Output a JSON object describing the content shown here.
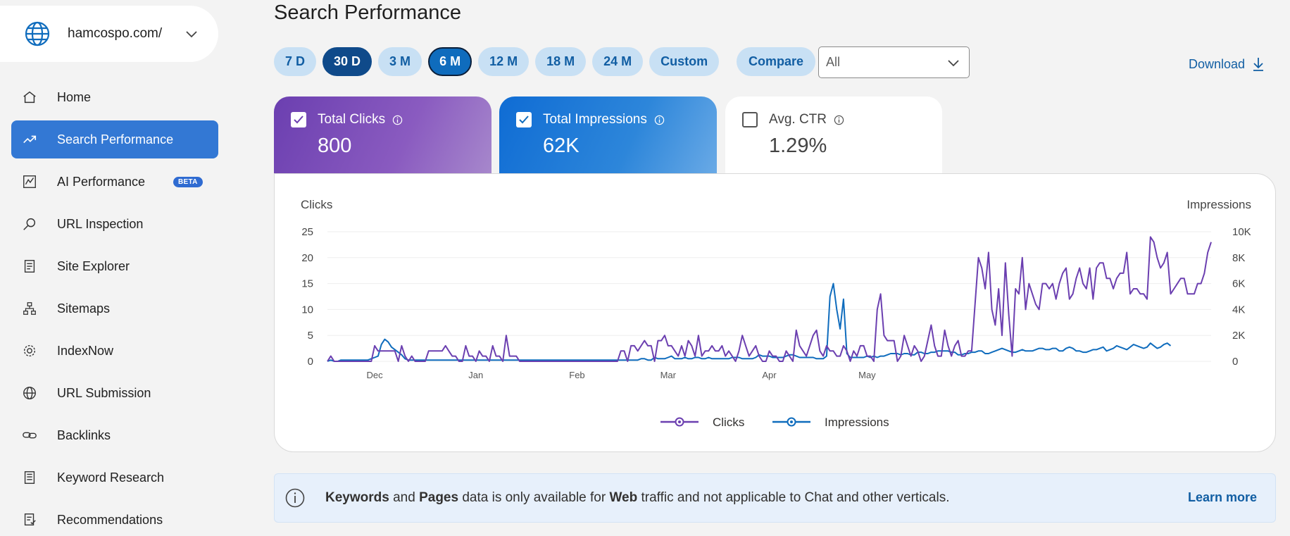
{
  "site": {
    "name": "hamcospo.com/"
  },
  "nav": [
    {
      "id": "home",
      "label": "Home",
      "icon": "home-icon"
    },
    {
      "id": "search-performance",
      "label": "Search Performance",
      "icon": "trend-icon",
      "active": true
    },
    {
      "id": "ai-performance",
      "label": "AI Performance",
      "icon": "chart-icon",
      "badge": "BETA"
    },
    {
      "id": "url-inspection",
      "label": "URL Inspection",
      "icon": "magnifier-icon"
    },
    {
      "id": "site-explorer",
      "label": "Site Explorer",
      "icon": "document-icon"
    },
    {
      "id": "sitemaps",
      "label": "Sitemaps",
      "icon": "sitemap-icon"
    },
    {
      "id": "indexnow",
      "label": "IndexNow",
      "icon": "gear-icon"
    },
    {
      "id": "url-submission",
      "label": "URL Submission",
      "icon": "globe-icon"
    },
    {
      "id": "backlinks",
      "label": "Backlinks",
      "icon": "link-icon"
    },
    {
      "id": "keyword-research",
      "label": "Keyword Research",
      "icon": "notes-icon"
    },
    {
      "id": "recommendations",
      "label": "Recommendations",
      "icon": "checklist-icon"
    }
  ],
  "header": {
    "title": "Search Performance"
  },
  "ranges": [
    {
      "label": "7 D",
      "state": "normal"
    },
    {
      "label": "30 D",
      "state": "dark"
    },
    {
      "label": "3 M",
      "state": "normal"
    },
    {
      "label": "6 M",
      "state": "selected"
    },
    {
      "label": "12 M",
      "state": "normal"
    },
    {
      "label": "18 M",
      "state": "normal"
    },
    {
      "label": "24 M",
      "state": "normal"
    },
    {
      "label": "Custom",
      "state": "normal"
    }
  ],
  "compare": {
    "label": "Compare"
  },
  "filter": {
    "value": "All"
  },
  "download": {
    "label": "Download"
  },
  "kpis": {
    "clicks": {
      "label": "Total Clicks",
      "value": "800",
      "checked": true
    },
    "impressions": {
      "label": "Total Impressions",
      "value": "62K",
      "checked": true
    },
    "ctr": {
      "label": "Avg. CTR",
      "value": "1.29%",
      "checked": false
    }
  },
  "banner": {
    "b1": "Keywords",
    "t1": " and ",
    "b2": "Pages",
    "t2": " data is only available for ",
    "b3": "Web",
    "t3": " traffic and not applicable to Chat and other verticals.",
    "link": "Learn more"
  },
  "colors": {
    "clicks": "#6b3fb0",
    "impressions": "#0f6cbd",
    "accent": "#115ea3"
  },
  "chart_data": {
    "type": "line",
    "left_axis_title": "Clicks",
    "right_axis_title": "Impressions",
    "left_ticks": [
      "0",
      "5",
      "10",
      "15",
      "20",
      "25"
    ],
    "right_ticks": [
      "0",
      "2K",
      "4K",
      "6K",
      "8K",
      "10K"
    ],
    "ylim_left": [
      0,
      25
    ],
    "ylim_right": [
      0,
      10000
    ],
    "x_labels": [
      "Dec",
      "Jan",
      "Feb",
      "Mar",
      "Apr",
      "May"
    ],
    "x_label_index": [
      14,
      44,
      74,
      101,
      131,
      160
    ],
    "legend": [
      "Clicks",
      "Impressions"
    ],
    "series": [
      {
        "name": "Clicks",
        "axis": "left",
        "values": [
          0,
          1,
          0,
          0,
          0,
          0,
          0,
          0,
          0,
          0,
          0,
          0,
          0,
          0,
          3,
          2,
          2,
          2,
          2,
          2,
          2,
          0,
          3,
          1,
          0,
          1,
          0,
          0,
          0,
          0,
          2,
          2,
          2,
          2,
          2,
          3,
          2,
          1,
          1,
          0,
          0,
          3,
          1,
          1,
          0,
          2,
          1,
          1,
          0,
          3,
          1,
          1,
          0,
          5,
          1,
          1,
          1,
          0,
          0,
          0,
          0,
          0,
          0,
          0,
          0,
          0,
          0,
          0,
          0,
          0,
          0,
          0,
          0,
          0,
          0,
          0,
          0,
          0,
          0,
          0,
          0,
          0,
          0,
          0,
          0,
          0,
          0,
          2,
          2,
          0,
          3,
          3,
          2,
          3,
          4,
          3,
          3,
          0,
          4,
          4,
          5,
          3,
          3,
          2,
          1,
          3,
          1,
          4,
          3,
          1,
          5,
          1,
          2,
          2,
          3,
          2,
          2,
          3,
          1,
          2,
          1,
          0,
          2,
          5,
          3,
          1,
          2,
          3,
          1,
          0,
          0,
          2,
          1,
          1,
          0,
          0,
          2,
          1,
          0,
          6,
          3,
          2,
          1,
          3,
          5,
          6,
          2,
          1,
          3,
          2,
          2,
          1,
          1,
          3,
          2,
          0,
          2,
          1,
          3,
          3,
          1,
          1,
          0,
          10,
          13,
          5,
          4,
          4,
          4,
          0,
          1,
          5,
          3,
          1,
          3,
          2,
          0,
          1,
          4,
          7,
          3,
          1,
          1,
          6,
          3,
          1,
          3,
          4,
          1,
          1,
          2,
          2,
          11,
          20,
          18,
          14,
          21,
          10,
          7,
          14,
          5,
          19,
          9,
          1,
          14,
          13,
          20,
          10,
          15,
          13,
          11,
          10,
          15,
          15,
          14,
          15,
          12,
          15,
          17,
          18,
          12,
          13,
          16,
          18,
          15,
          14,
          18,
          12,
          18,
          19,
          19,
          16,
          16,
          14,
          16,
          17,
          17,
          21,
          13,
          14,
          14,
          13,
          13,
          12,
          24,
          23,
          20,
          18,
          19,
          21,
          13,
          14,
          15,
          16,
          16,
          13,
          13,
          13,
          15,
          15,
          17,
          21,
          23
        ]
      },
      {
        "name": "Impressions",
        "axis": "right",
        "values": [
          0,
          100,
          0,
          0,
          100,
          100,
          100,
          100,
          100,
          100,
          100,
          100,
          100,
          200,
          300,
          400,
          1300,
          1700,
          1500,
          1100,
          900,
          700,
          500,
          200,
          100,
          100,
          100,
          100,
          100,
          100,
          100,
          100,
          100,
          100,
          100,
          100,
          100,
          100,
          100,
          100,
          100,
          100,
          100,
          100,
          100,
          100,
          100,
          100,
          100,
          100,
          100,
          100,
          100,
          100,
          100,
          100,
          100,
          100,
          100,
          100,
          100,
          100,
          100,
          100,
          100,
          100,
          100,
          100,
          100,
          100,
          100,
          100,
          100,
          100,
          100,
          100,
          100,
          100,
          100,
          100,
          100,
          100,
          100,
          100,
          100,
          100,
          100,
          100,
          100,
          100,
          100,
          100,
          100,
          200,
          200,
          100,
          100,
          300,
          200,
          200,
          200,
          300,
          400,
          200,
          200,
          200,
          300,
          200,
          200,
          300,
          300,
          200,
          200,
          300,
          200,
          200,
          200,
          200,
          200,
          200,
          300,
          300,
          300,
          200,
          200,
          200,
          200,
          300,
          500,
          400,
          400,
          400,
          300,
          300,
          300,
          300,
          400,
          500,
          500,
          400,
          300,
          300,
          300,
          300,
          300,
          200,
          200,
          200,
          400,
          5000,
          6000,
          4000,
          2500,
          4800,
          600,
          300,
          300,
          300,
          300,
          300,
          400,
          300,
          400,
          300,
          400,
          400,
          500,
          600,
          600,
          600,
          500,
          600,
          600,
          500,
          500,
          700,
          700,
          600,
          600,
          700,
          700,
          800,
          800,
          800,
          800,
          700,
          700,
          500,
          500,
          600,
          600,
          700,
          700,
          800,
          800,
          600,
          600,
          700,
          800,
          900,
          1000,
          900,
          800,
          700,
          700,
          800,
          900,
          800,
          800,
          800,
          900,
          1000,
          1000,
          900,
          900,
          1000,
          1000,
          800,
          800,
          1000,
          1100,
          1000,
          800,
          800,
          700,
          700,
          800,
          900,
          900,
          1000,
          1100,
          800,
          900,
          1000,
          1200,
          1100,
          1000,
          900,
          1100,
          1300,
          1200,
          1100,
          1000,
          1100,
          1400,
          1200,
          1000,
          1100,
          1300,
          1400,
          1200
        ]
      }
    ]
  }
}
